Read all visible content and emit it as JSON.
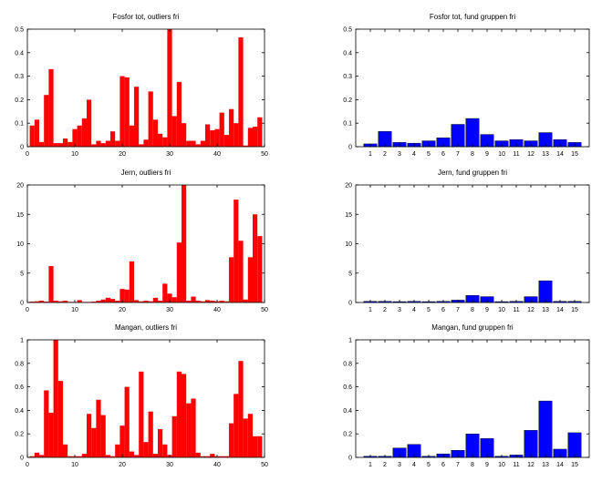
{
  "colors": {
    "red": "#ff0000",
    "blue": "#0000ff",
    "axis": "#000000"
  },
  "chart_data": [
    {
      "type": "bar",
      "title": "Fosfor tot, outliers fri",
      "color": "#ff0000",
      "x": [
        1,
        2,
        3,
        4,
        5,
        6,
        7,
        8,
        9,
        10,
        11,
        12,
        13,
        14,
        15,
        16,
        17,
        18,
        19,
        20,
        21,
        22,
        23,
        24,
        25,
        26,
        27,
        28,
        29,
        30,
        31,
        32,
        33,
        34,
        35,
        36,
        37,
        38,
        39,
        40,
        41,
        42,
        43,
        44,
        45,
        46,
        47,
        48,
        49
      ],
      "values": [
        0.09,
        0.115,
        0.02,
        0.22,
        0.33,
        0.015,
        0.015,
        0.035,
        0.02,
        0.075,
        0.09,
        0.12,
        0.2,
        0.01,
        0.025,
        0.015,
        0.025,
        0.065,
        0.025,
        0.3,
        0.295,
        0.09,
        0.255,
        0.01,
        0.03,
        0.235,
        0.115,
        0.055,
        0.04,
        0.5,
        0.13,
        0.275,
        0.1,
        0.025,
        0.025,
        0.01,
        0.025,
        0.095,
        0.07,
        0.075,
        0.145,
        0.05,
        0.16,
        0.1,
        0.465,
        0.005,
        0.08,
        0.085,
        0.125
      ],
      "xlim": [
        0,
        50
      ],
      "ylim": [
        0,
        0.5
      ],
      "xticks": [
        0,
        10,
        20,
        30,
        40,
        50
      ],
      "xtick_labels": [
        "0",
        "10",
        "20",
        "30",
        "40",
        "50"
      ],
      "yticks": [
        0,
        0.1,
        0.2,
        0.3,
        0.4,
        0.5
      ],
      "ytick_labels": [
        "0",
        "0.1",
        "0.2",
        "0.3",
        "0.4",
        "0.5"
      ]
    },
    {
      "type": "bar",
      "title": "Fosfor tot, fund gruppen fri",
      "color": "#0000ff",
      "x": [
        1,
        2,
        3,
        4,
        5,
        6,
        7,
        8,
        9,
        10,
        11,
        12,
        13,
        14,
        15
      ],
      "values": [
        0.012,
        0.065,
        0.018,
        0.015,
        0.025,
        0.038,
        0.095,
        0.12,
        0.052,
        0.025,
        0.03,
        0.025,
        0.06,
        0.03,
        0.018
      ],
      "xlim": [
        0,
        16
      ],
      "ylim": [
        0,
        0.5
      ],
      "xticks": [
        1,
        2,
        3,
        4,
        5,
        6,
        7,
        8,
        9,
        10,
        11,
        12,
        13,
        14,
        15
      ],
      "xtick_labels": [
        "1",
        "2",
        "3",
        "4",
        "5",
        "6",
        "7",
        "8",
        "9",
        "10",
        "11",
        "12",
        "13",
        "14",
        "15"
      ],
      "yticks": [
        0,
        0.1,
        0.2,
        0.3,
        0.4,
        0.5
      ],
      "ytick_labels": [
        "0",
        "0.1",
        "0.2",
        "0.3",
        "0.4",
        "0.5"
      ]
    },
    {
      "type": "bar",
      "title": "Jern, outliers fri",
      "color": "#ff0000",
      "x": [
        1,
        2,
        3,
        4,
        5,
        6,
        7,
        8,
        9,
        10,
        11,
        12,
        13,
        14,
        15,
        16,
        17,
        18,
        19,
        20,
        21,
        22,
        23,
        24,
        25,
        26,
        27,
        28,
        29,
        30,
        31,
        32,
        33,
        34,
        35,
        36,
        37,
        38,
        39,
        40,
        41,
        42,
        43,
        44,
        45,
        46,
        47,
        48,
        49
      ],
      "values": [
        0.15,
        0.2,
        0.3,
        0.15,
        6.2,
        0.3,
        0.2,
        0.3,
        0.1,
        0.1,
        0.4,
        0.1,
        0.1,
        0.15,
        0.3,
        0.5,
        0.8,
        0.6,
        0.3,
        2.3,
        2.2,
        7.0,
        0.4,
        0.2,
        0.3,
        0.2,
        0.8,
        0.3,
        3.2,
        1.5,
        0.9,
        10.2,
        20.0,
        0.3,
        1.0,
        0.3,
        0.2,
        0.4,
        0.3,
        0.2,
        0.3,
        0.2,
        7.7,
        17.5,
        10.5,
        0.5,
        7.7,
        15.0,
        11.3
      ],
      "xlim": [
        0,
        50
      ],
      "ylim": [
        0,
        20
      ],
      "xticks": [
        0,
        10,
        20,
        30,
        40,
        50
      ],
      "xtick_labels": [
        "0",
        "10",
        "20",
        "30",
        "40",
        "50"
      ],
      "yticks": [
        0,
        5,
        10,
        15,
        20
      ],
      "ytick_labels": [
        "0",
        "5",
        "10",
        "15",
        "20"
      ]
    },
    {
      "type": "bar",
      "title": "Jern, fund gruppen fri",
      "color": "#0000ff",
      "x": [
        1,
        2,
        3,
        4,
        5,
        6,
        7,
        8,
        9,
        10,
        11,
        12,
        13,
        14,
        15
      ],
      "values": [
        0.2,
        0.2,
        0.15,
        0.2,
        0.15,
        0.2,
        0.4,
        1.2,
        1.0,
        0.15,
        0.2,
        1.0,
        3.7,
        0.2,
        0.2
      ],
      "xlim": [
        0,
        16
      ],
      "ylim": [
        0,
        20
      ],
      "xticks": [
        1,
        2,
        3,
        4,
        5,
        6,
        7,
        8,
        9,
        10,
        11,
        12,
        13,
        14,
        15
      ],
      "xtick_labels": [
        "1",
        "2",
        "3",
        "4",
        "5",
        "6",
        "7",
        "8",
        "9",
        "10",
        "11",
        "12",
        "13",
        "14",
        "15"
      ],
      "yticks": [
        0,
        5,
        10,
        15,
        20
      ],
      "ytick_labels": [
        "0",
        "5",
        "10",
        "15",
        "20"
      ]
    },
    {
      "type": "bar",
      "title": "Mangan, outliers fri",
      "color": "#ff0000",
      "x": [
        1,
        2,
        3,
        4,
        5,
        6,
        7,
        8,
        9,
        10,
        11,
        12,
        13,
        14,
        15,
        16,
        17,
        18,
        19,
        20,
        21,
        22,
        23,
        24,
        25,
        26,
        27,
        28,
        29,
        30,
        31,
        32,
        33,
        34,
        35,
        36,
        37,
        38,
        39,
        40,
        41,
        42,
        43,
        44,
        45,
        46,
        47,
        48,
        49
      ],
      "values": [
        0.01,
        0.04,
        0.02,
        0.57,
        0.38,
        1.0,
        0.65,
        0.11,
        0.01,
        0.01,
        0.01,
        0.03,
        0.37,
        0.25,
        0.49,
        0.36,
        0.02,
        0.01,
        0.11,
        0.27,
        0.6,
        0.05,
        0.02,
        0.73,
        0.13,
        0.39,
        0.03,
        0.24,
        0.11,
        0.02,
        0.35,
        0.73,
        0.71,
        0.46,
        0.5,
        0.04,
        0.01,
        0.01,
        0.03,
        0.01,
        0.01,
        0.01,
        0.29,
        0.54,
        0.82,
        0.33,
        0.37,
        0.18,
        0.18
      ],
      "xlim": [
        0,
        50
      ],
      "ylim": [
        0,
        1
      ],
      "xticks": [
        0,
        10,
        20,
        30,
        40,
        50
      ],
      "xtick_labels": [
        "0",
        "10",
        "20",
        "30",
        "40",
        "50"
      ],
      "yticks": [
        0,
        0.2,
        0.4,
        0.6,
        0.8,
        1
      ],
      "ytick_labels": [
        "0",
        "0.2",
        "0.4",
        "0.6",
        "0.8",
        "1"
      ]
    },
    {
      "type": "bar",
      "title": "Mangan, fund gruppen fri",
      "color": "#0000ff",
      "x": [
        1,
        2,
        3,
        4,
        5,
        6,
        7,
        8,
        9,
        10,
        11,
        12,
        13,
        14,
        15
      ],
      "values": [
        0.01,
        0.01,
        0.08,
        0.11,
        0.01,
        0.03,
        0.06,
        0.2,
        0.16,
        0.01,
        0.02,
        0.23,
        0.48,
        0.07,
        0.21
      ],
      "xlim": [
        0,
        16
      ],
      "ylim": [
        0,
        1
      ],
      "xticks": [
        1,
        2,
        3,
        4,
        5,
        6,
        7,
        8,
        9,
        10,
        11,
        12,
        13,
        14,
        15
      ],
      "xtick_labels": [
        "1",
        "2",
        "3",
        "4",
        "5",
        "6",
        "7",
        "8",
        "9",
        "10",
        "11",
        "12",
        "13",
        "14",
        "15"
      ],
      "yticks": [
        0,
        0.2,
        0.4,
        0.6,
        0.8,
        1
      ],
      "ytick_labels": [
        "0",
        "0.2",
        "0.4",
        "0.6",
        "0.8",
        "1"
      ]
    }
  ]
}
